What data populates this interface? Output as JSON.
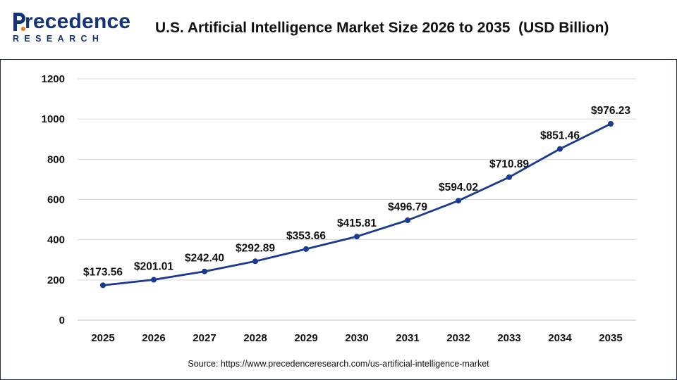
{
  "header": {
    "logo_word": "recedence",
    "logo_sub": "RESEARCH",
    "title": "U.S. Artificial Intelligence Market Size 2026 to 2035  (USD Billion)"
  },
  "source": "Source: https://www.precedenceresearch.com/us-artificial-intelligence-market",
  "colors": {
    "line": "#1a3a8f",
    "brand": "#13337a",
    "grid": "#d9d9d9"
  },
  "chart_data": {
    "type": "line",
    "title": "U.S. Artificial Intelligence Market Size 2026 to 2035  (USD Billion)",
    "xlabel": "",
    "ylabel": "",
    "categories": [
      "2025",
      "2026",
      "2027",
      "2028",
      "2029",
      "2030",
      "2031",
      "2032",
      "2033",
      "2034",
      "2035"
    ],
    "series": [
      {
        "values": [
          173.56,
          201.01,
          242.4,
          292.89,
          353.66,
          415.81,
          496.79,
          594.02,
          710.89,
          851.46,
          976.23
        ],
        "labels": [
          "$173.56",
          "$201.01",
          "$242.40",
          "$292.89",
          "$353.66",
          "$415.81",
          "$496.79",
          "$594.02",
          "$710.89",
          "$851.46",
          "$976.23"
        ]
      }
    ],
    "ylim": [
      0,
      1200
    ],
    "yticks": [
      0,
      200,
      400,
      600,
      800,
      1000,
      1200
    ],
    "grid": true,
    "legend": "none"
  }
}
